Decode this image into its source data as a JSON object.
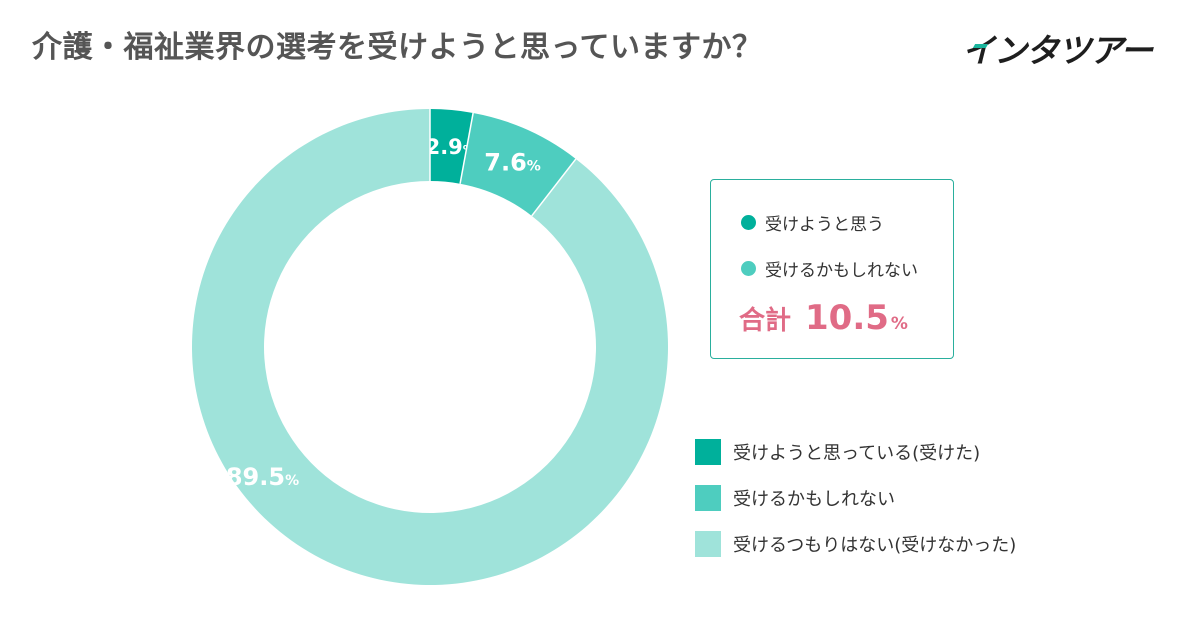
{
  "header": {
    "title": "介護・福祉業界の選考を受けようと思っていますか？",
    "logo_text": "インタツアー"
  },
  "chart_data": {
    "type": "pie",
    "unit": "%",
    "categories": [
      "受けようと思っている(受けた)",
      "受けるかもしれない",
      "受けるつもりはない(受けなかった)"
    ],
    "values": [
      2.9,
      7.6,
      89.5
    ],
    "colors": [
      "#00b09b",
      "#4ecdbf",
      "#9fe3da"
    ],
    "value_labels": [
      "2.9",
      "7.6",
      "89.5"
    ]
  },
  "callout": {
    "items": [
      "受けようと思う",
      "受けるかもしれない"
    ],
    "item_colors": [
      "#00b09b",
      "#4ecdbf"
    ],
    "total_label": "合計",
    "total_value": "10.5",
    "total_unit": "%",
    "accent_color": "#e06b86",
    "border_color": "#2aaf9d"
  },
  "legend": {
    "items": [
      "受けようと思っている(受けた)",
      "受けるかもしれない",
      "受けるつもりはない(受けなかった)"
    ]
  }
}
